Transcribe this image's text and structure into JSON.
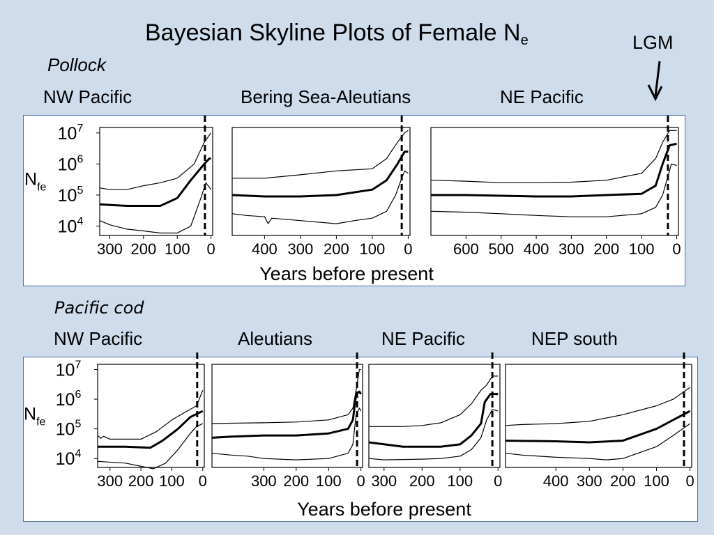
{
  "title": "Bayesian Skyline Plots of Female N",
  "title_sub": "e",
  "lgm_label": "LGM",
  "groups": {
    "pollock": "Pollock",
    "cod": "Pacific cod"
  },
  "y_axis": {
    "label_main": "N",
    "label_sub": "fe",
    "ticks": [
      {
        "base": "10",
        "exp": "7",
        "value": 10000000
      },
      {
        "base": "10",
        "exp": "6",
        "value": 1000000
      },
      {
        "base": "10",
        "exp": "5",
        "value": 100000
      },
      {
        "base": "10",
        "exp": "4",
        "value": 10000
      }
    ],
    "scale": "log",
    "ylim": [
      5000,
      15000000
    ]
  },
  "x_axis_label": "Years before present",
  "colors": {
    "background": "#cfdcec",
    "panel_border": "#4a6fa5",
    "line": "#000000"
  },
  "chart_data": [
    {
      "type": "line",
      "group": "Pollock",
      "title": "NW Pacific",
      "xlim": [
        330,
        -5
      ],
      "xticks": [
        300,
        200,
        100,
        0
      ],
      "lgm": 18,
      "median": [
        [
          330,
          50000
        ],
        [
          250,
          45000
        ],
        [
          150,
          45000
        ],
        [
          100,
          80000
        ],
        [
          60,
          300000
        ],
        [
          20,
          1000000
        ],
        [
          5,
          1500000
        ],
        [
          0,
          1500000
        ]
      ],
      "upper": [
        [
          330,
          170000
        ],
        [
          300,
          150000
        ],
        [
          250,
          150000
        ],
        [
          200,
          200000
        ],
        [
          150,
          250000
        ],
        [
          100,
          350000
        ],
        [
          50,
          1000000
        ],
        [
          20,
          5000000
        ],
        [
          0,
          10000000
        ]
      ],
      "lower": [
        [
          330,
          15000
        ],
        [
          300,
          11000
        ],
        [
          250,
          8000
        ],
        [
          200,
          7000
        ],
        [
          150,
          6000
        ],
        [
          100,
          6000
        ],
        [
          60,
          10000
        ],
        [
          30,
          80000
        ],
        [
          15,
          250000
        ],
        [
          0,
          150000
        ]
      ]
    },
    {
      "type": "line",
      "group": "Pollock",
      "title": "Bering Sea-Aleutians",
      "xlim": [
        490,
        -5
      ],
      "xticks": [
        400,
        300,
        200,
        100,
        0
      ],
      "lgm": 18,
      "median": [
        [
          490,
          100000
        ],
        [
          400,
          90000
        ],
        [
          300,
          90000
        ],
        [
          200,
          100000
        ],
        [
          100,
          150000
        ],
        [
          60,
          300000
        ],
        [
          30,
          1000000
        ],
        [
          10,
          2500000
        ],
        [
          0,
          2500000
        ]
      ],
      "upper": [
        [
          490,
          350000
        ],
        [
          400,
          350000
        ],
        [
          300,
          450000
        ],
        [
          200,
          600000
        ],
        [
          100,
          700000
        ],
        [
          60,
          1500000
        ],
        [
          30,
          5000000
        ],
        [
          10,
          10000000
        ],
        [
          0,
          12000000
        ]
      ],
      "lower": [
        [
          490,
          25000
        ],
        [
          450,
          22000
        ],
        [
          400,
          20000
        ],
        [
          390,
          12000
        ],
        [
          380,
          18000
        ],
        [
          300,
          15000
        ],
        [
          200,
          12000
        ],
        [
          150,
          15000
        ],
        [
          100,
          18000
        ],
        [
          60,
          30000
        ],
        [
          35,
          100000
        ],
        [
          20,
          300000
        ],
        [
          10,
          600000
        ],
        [
          0,
          500000
        ]
      ]
    },
    {
      "type": "line",
      "group": "Pollock",
      "title": "NE Pacific",
      "xlim": [
        700,
        -5
      ],
      "xticks": [
        600,
        500,
        400,
        300,
        200,
        100,
        0
      ],
      "lgm": 25,
      "median": [
        [
          700,
          100000
        ],
        [
          600,
          100000
        ],
        [
          500,
          95000
        ],
        [
          400,
          90000
        ],
        [
          300,
          90000
        ],
        [
          200,
          100000
        ],
        [
          100,
          110000
        ],
        [
          60,
          200000
        ],
        [
          40,
          1000000
        ],
        [
          20,
          4000000
        ],
        [
          0,
          4500000
        ]
      ],
      "upper": [
        [
          700,
          300000
        ],
        [
          600,
          280000
        ],
        [
          500,
          250000
        ],
        [
          400,
          250000
        ],
        [
          300,
          260000
        ],
        [
          200,
          300000
        ],
        [
          100,
          500000
        ],
        [
          60,
          1500000
        ],
        [
          40,
          5000000
        ],
        [
          20,
          12000000
        ],
        [
          0,
          12000000
        ]
      ],
      "lower": [
        [
          700,
          30000
        ],
        [
          600,
          28000
        ],
        [
          500,
          25000
        ],
        [
          400,
          22000
        ],
        [
          300,
          20000
        ],
        [
          200,
          20000
        ],
        [
          100,
          25000
        ],
        [
          60,
          40000
        ],
        [
          40,
          100000
        ],
        [
          25,
          400000
        ],
        [
          15,
          1000000
        ],
        [
          0,
          900000
        ]
      ]
    },
    {
      "type": "line",
      "group": "Pacific cod",
      "title": "NW Pacific",
      "xlim": [
        340,
        -5
      ],
      "xticks": [
        300,
        200,
        100,
        0
      ],
      "lgm": 18,
      "median": [
        [
          340,
          25000
        ],
        [
          250,
          25000
        ],
        [
          170,
          23000
        ],
        [
          130,
          40000
        ],
        [
          80,
          100000
        ],
        [
          40,
          250000
        ],
        [
          0,
          400000
        ]
      ],
      "upper": [
        [
          340,
          60000
        ],
        [
          330,
          48000
        ],
        [
          320,
          56000
        ],
        [
          300,
          45000
        ],
        [
          200,
          45000
        ],
        [
          150,
          80000
        ],
        [
          100,
          200000
        ],
        [
          50,
          400000
        ],
        [
          20,
          600000
        ],
        [
          0,
          2000000
        ]
      ],
      "lower": [
        [
          340,
          8000
        ],
        [
          250,
          7000
        ],
        [
          160,
          4500
        ],
        [
          120,
          7000
        ],
        [
          80,
          20000
        ],
        [
          40,
          70000
        ],
        [
          20,
          120000
        ],
        [
          0,
          150000
        ]
      ]
    },
    {
      "type": "line",
      "group": "Pacific cod",
      "title": "Aleutians",
      "xlim": [
        460,
        -5
      ],
      "xticks": [
        300,
        200,
        100,
        0
      ],
      "lgm": 12,
      "median": [
        [
          460,
          50000
        ],
        [
          400,
          55000
        ],
        [
          300,
          60000
        ],
        [
          200,
          60000
        ],
        [
          100,
          70000
        ],
        [
          40,
          100000
        ],
        [
          25,
          200000
        ],
        [
          15,
          1500000
        ],
        [
          5,
          1800000
        ],
        [
          0,
          1500000
        ]
      ],
      "upper": [
        [
          460,
          150000
        ],
        [
          400,
          155000
        ],
        [
          300,
          160000
        ],
        [
          200,
          170000
        ],
        [
          100,
          200000
        ],
        [
          40,
          300000
        ],
        [
          25,
          500000
        ],
        [
          15,
          2000000
        ],
        [
          5,
          10000000
        ],
        [
          0,
          10000000
        ]
      ],
      "lower": [
        [
          460,
          15000
        ],
        [
          400,
          13000
        ],
        [
          350,
          12000
        ],
        [
          300,
          10000
        ],
        [
          200,
          9000
        ],
        [
          100,
          10000
        ],
        [
          40,
          15000
        ],
        [
          25,
          30000
        ],
        [
          15,
          300000
        ],
        [
          5,
          500000
        ],
        [
          0,
          400000
        ]
      ]
    },
    {
      "type": "line",
      "group": "Pacific cod",
      "title": "NE Pacific",
      "xlim": [
        340,
        -5
      ],
      "xticks": [
        300,
        200,
        100,
        0
      ],
      "lgm": 15,
      "median": [
        [
          340,
          35000
        ],
        [
          250,
          25000
        ],
        [
          150,
          25000
        ],
        [
          100,
          30000
        ],
        [
          70,
          60000
        ],
        [
          45,
          150000
        ],
        [
          35,
          800000
        ],
        [
          20,
          1500000
        ],
        [
          0,
          1500000
        ]
      ],
      "upper": [
        [
          340,
          120000
        ],
        [
          250,
          120000
        ],
        [
          200,
          130000
        ],
        [
          150,
          160000
        ],
        [
          100,
          300000
        ],
        [
          70,
          700000
        ],
        [
          45,
          2000000
        ],
        [
          30,
          3000000
        ],
        [
          15,
          6000000
        ],
        [
          0,
          6000000
        ]
      ],
      "lower": [
        [
          340,
          10000
        ],
        [
          300,
          9000
        ],
        [
          200,
          9500
        ],
        [
          150,
          10000
        ],
        [
          100,
          12000
        ],
        [
          70,
          20000
        ],
        [
          45,
          50000
        ],
        [
          30,
          200000
        ],
        [
          15,
          450000
        ],
        [
          0,
          400000
        ]
      ]
    },
    {
      "type": "line",
      "group": "Pacific cod",
      "title": "NEP south",
      "xlim": [
        550,
        -5
      ],
      "xticks": [
        400,
        300,
        200,
        100,
        0
      ],
      "lgm": 18,
      "median": [
        [
          550,
          40000
        ],
        [
          400,
          38000
        ],
        [
          300,
          35000
        ],
        [
          200,
          40000
        ],
        [
          100,
          100000
        ],
        [
          50,
          200000
        ],
        [
          0,
          400000
        ]
      ],
      "upper": [
        [
          550,
          130000
        ],
        [
          500,
          140000
        ],
        [
          400,
          150000
        ],
        [
          300,
          180000
        ],
        [
          200,
          300000
        ],
        [
          100,
          600000
        ],
        [
          50,
          1000000
        ],
        [
          0,
          2500000
        ]
      ],
      "lower": [
        [
          550,
          15000
        ],
        [
          500,
          13000
        ],
        [
          400,
          11000
        ],
        [
          300,
          10000
        ],
        [
          250,
          9000
        ],
        [
          200,
          10000
        ],
        [
          100,
          25000
        ],
        [
          50,
          60000
        ],
        [
          0,
          150000
        ]
      ]
    }
  ]
}
